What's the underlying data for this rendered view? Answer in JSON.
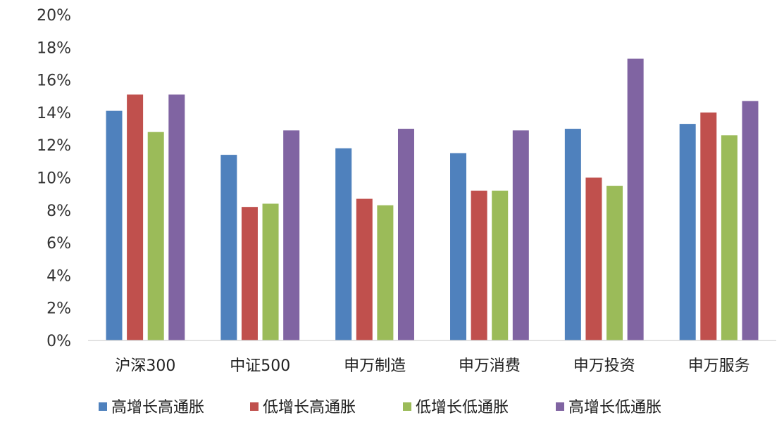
{
  "chart_data": {
    "type": "bar",
    "title": "",
    "xlabel": "",
    "ylabel": "",
    "ylim": [
      0,
      20
    ],
    "y_ticks": [
      "0%",
      "2%",
      "4%",
      "6%",
      "8%",
      "10%",
      "12%",
      "14%",
      "16%",
      "18%",
      "20%"
    ],
    "y_tick_values": [
      0,
      2,
      4,
      6,
      8,
      10,
      12,
      14,
      16,
      18,
      20
    ],
    "categories": [
      "沪深300",
      "中证500",
      "申万制造",
      "申万消费",
      "申万投资",
      "申万服务"
    ],
    "series": [
      {
        "name": "高增长高通胀",
        "color": "#4F81BD",
        "values": [
          14.1,
          11.4,
          11.8,
          11.5,
          13.0,
          13.3
        ]
      },
      {
        "name": "低增长高通胀",
        "color": "#C0504D",
        "values": [
          15.1,
          8.2,
          8.7,
          9.2,
          10.0,
          14.0
        ]
      },
      {
        "name": "低增长低通胀",
        "color": "#9BBB59",
        "values": [
          12.8,
          8.4,
          8.3,
          9.2,
          9.5,
          12.6
        ]
      },
      {
        "name": "高增长低通胀",
        "color": "#8064A2",
        "values": [
          15.1,
          12.9,
          13.0,
          12.9,
          17.3,
          14.7
        ]
      }
    ],
    "grid": false,
    "legend_position": "bottom"
  }
}
